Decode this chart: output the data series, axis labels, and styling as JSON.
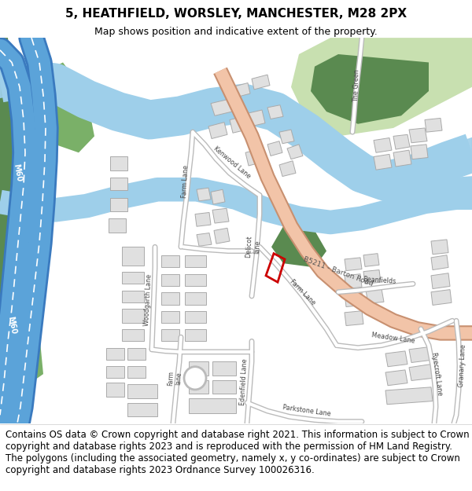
{
  "title": "5, HEATHFIELD, WORSLEY, MANCHESTER, M28 2PX",
  "subtitle": "Map shows position and indicative extent of the property.",
  "footer": "Contains OS data © Crown copyright and database right 2021. This information is subject to Crown copyright and database rights 2023 and is reproduced with the permission of HM Land Registry. The polygons (including the associated geometry, namely x, y co-ordinates) are subject to Crown copyright and database rights 2023 Ordnance Survey 100026316.",
  "title_fontsize": 11,
  "subtitle_fontsize": 9,
  "footer_fontsize": 8.5,
  "bg_color": "#ffffff",
  "map_bg": "#f5f5f5",
  "motorway_color": "#5ba3d9",
  "motorway_dark": "#3a7abf",
  "major_road_color": "#f2c4a8",
  "major_road_dark": "#c89070",
  "river_color": "#9ecfea",
  "green_dark": "#5a8a50",
  "green_medium": "#7ab068",
  "green_light": "#c8e0b0",
  "building_fill": "#e0e0e0",
  "building_edge": "#aaaaaa",
  "plot_color": "#cc0000",
  "road_fill": "#ffffff",
  "road_edge": "#bbbbbb",
  "label_color": "#333333"
}
